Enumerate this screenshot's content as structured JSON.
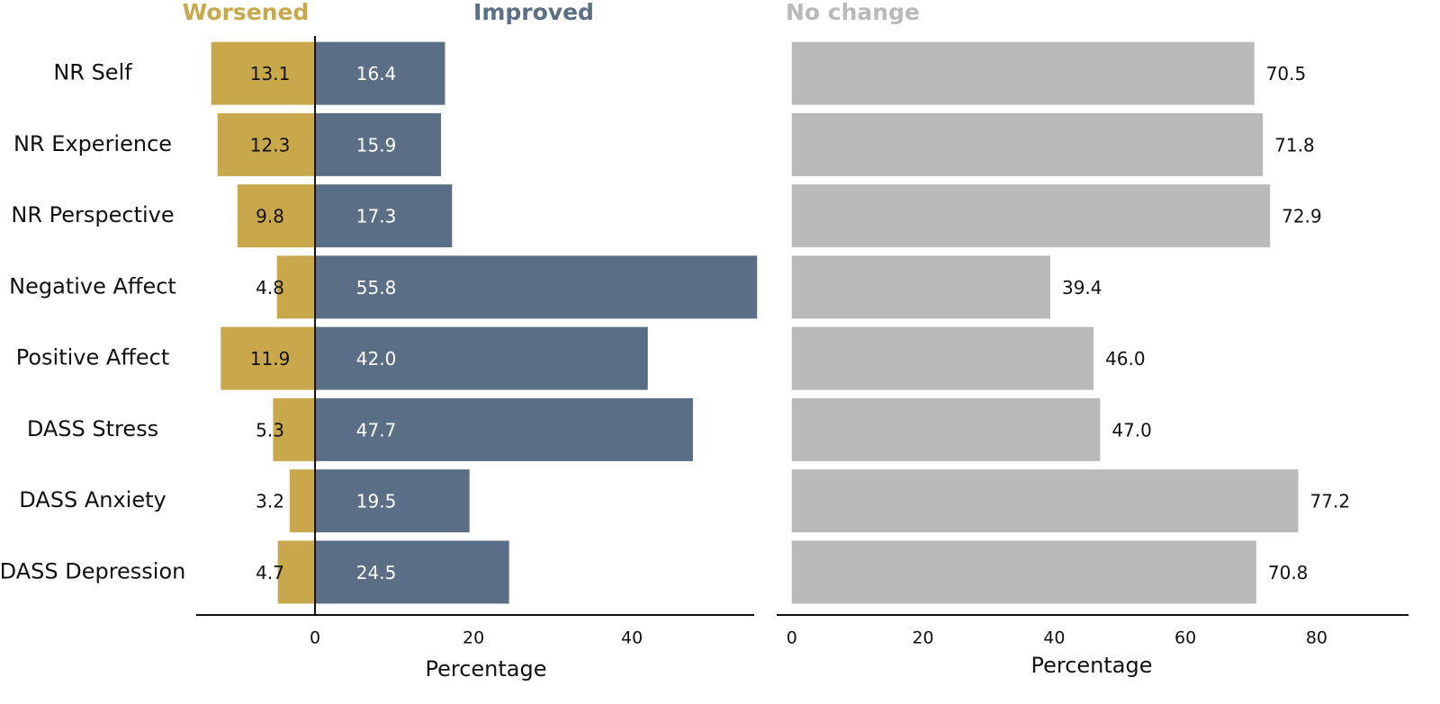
{
  "chart_data": [
    {
      "type": "diverging-bar",
      "categories": [
        "NR Self",
        "NR Experience",
        "NR Perspective",
        "Negative Affect",
        "Positive Affect",
        "DASS Stress",
        "DASS Anxiety",
        "DASS Depression"
      ],
      "series": [
        {
          "name": "Worsened",
          "color": "#c8a84b",
          "values": [
            -13.1,
            -12.3,
            -9.8,
            -4.8,
            -11.9,
            -5.3,
            -3.2,
            -4.7
          ],
          "value_labels": [
            "13.1",
            "12.3",
            "9.8",
            "4.8",
            "11.9",
            "5.3",
            "3.2",
            "4.7"
          ]
        },
        {
          "name": "Improved",
          "color": "#5a6e85",
          "values": [
            16.4,
            15.9,
            17.3,
            55.8,
            42.0,
            47.7,
            19.5,
            24.5
          ],
          "value_labels": [
            "16.4",
            "15.9",
            "17.3",
            "55.8",
            "42.0",
            "47.7",
            "19.5",
            "24.5"
          ]
        }
      ],
      "xlim": [
        -15,
        56
      ],
      "xticks": [
        0,
        20,
        40
      ],
      "x_label": "Percentage"
    },
    {
      "type": "bar",
      "series": [
        {
          "name": "No change",
          "color": "#b9b9b9",
          "values": [
            70.5,
            71.8,
            72.9,
            39.4,
            46.0,
            47.0,
            77.2,
            70.8
          ],
          "value_labels": [
            "70.5",
            "71.8",
            "72.9",
            "39.4",
            "46.0",
            "47.0",
            "77.2",
            "70.8"
          ]
        }
      ],
      "xlim": [
        -2.3,
        94
      ],
      "xticks": [
        0,
        20,
        40,
        60,
        80
      ],
      "x_label": "Percentage"
    }
  ]
}
